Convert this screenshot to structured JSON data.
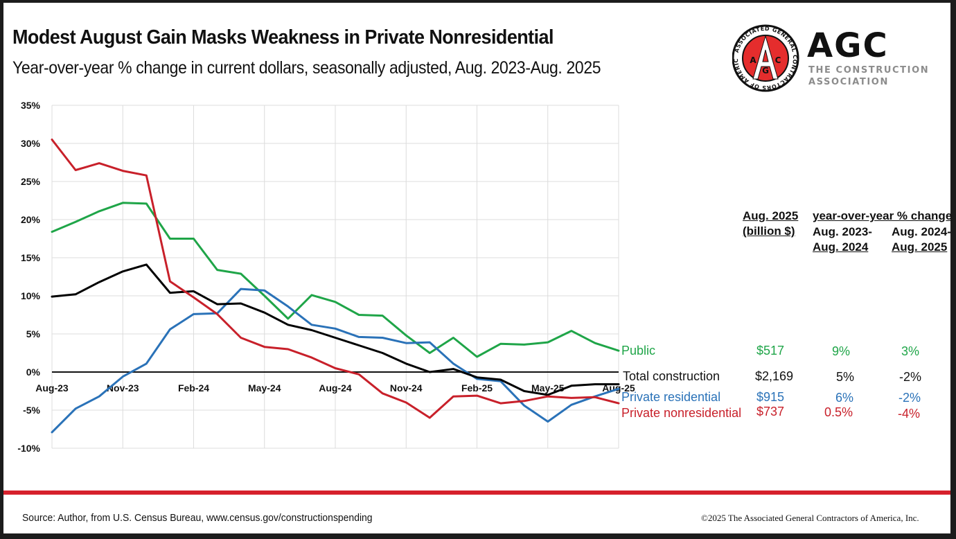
{
  "header": {
    "title": "Modest August Gain Masks Weakness in Private Nonresidential",
    "subtitle": "Year-over-year % change in current dollars, seasonally adjusted, Aug. 2023-Aug. 2025"
  },
  "logo": {
    "seal_ring_text": "ASSOCIATED GENERAL CONTRACTORS OF AMERICA",
    "seal_letters": [
      "A",
      "G",
      "C"
    ],
    "wordmark": "AGC",
    "tagline_line1": "THE CONSTRUCTION",
    "tagline_line2": "ASSOCIATION",
    "brand_red": "#e52d2d"
  },
  "chart_data": {
    "type": "line",
    "title": "Modest August Gain Masks Weakness in Private Nonresidential",
    "subtitle": "Year-over-year % change in current dollars, seasonally adjusted, Aug. 2023-Aug. 2025",
    "xlabel": "",
    "ylabel": "",
    "ylim": [
      -10,
      35
    ],
    "yticks": [
      35,
      30,
      25,
      20,
      15,
      10,
      5,
      0,
      -5,
      -10
    ],
    "ytick_labels": [
      "35%",
      "30%",
      "25%",
      "20%",
      "15%",
      "10%",
      "5%",
      "0%",
      "-5%",
      "-10%"
    ],
    "x": [
      "Aug-23",
      "Sep-23",
      "Oct-23",
      "Nov-23",
      "Dec-23",
      "Jan-24",
      "Feb-24",
      "Mar-24",
      "Apr-24",
      "May-24",
      "Jun-24",
      "Jul-24",
      "Aug-24",
      "Sep-24",
      "Oct-24",
      "Nov-24",
      "Dec-24",
      "Jan-25",
      "Feb-25",
      "Mar-25",
      "Apr-25",
      "May-25",
      "Jun-25",
      "Jul-25",
      "Aug-25"
    ],
    "xtick_labels": [
      "Aug-23",
      "Nov-23",
      "Feb-24",
      "May-24",
      "Aug-24",
      "Nov-24",
      "Feb-25",
      "May-25",
      "Aug-25"
    ],
    "grid": true,
    "legend": "right (inline labels at line ends)",
    "series": [
      {
        "name": "Public",
        "color": "#1fa548",
        "values": [
          18.4,
          19.7,
          21.1,
          22.2,
          22.1,
          17.5,
          17.5,
          13.4,
          12.9,
          10.0,
          7.0,
          10.1,
          9.2,
          7.5,
          7.4,
          4.8,
          2.5,
          4.5,
          2.0,
          3.7,
          3.6,
          3.9,
          5.4,
          3.8,
          2.8
        ]
      },
      {
        "name": "Total construction",
        "color": "#000000",
        "values": [
          9.9,
          10.2,
          11.8,
          13.2,
          14.1,
          10.4,
          10.6,
          8.9,
          9.0,
          7.8,
          6.2,
          5.5,
          4.5,
          3.5,
          2.5,
          1.1,
          0.0,
          0.4,
          -0.7,
          -1.0,
          -2.5,
          -3.0,
          -1.8,
          -1.6,
          -1.6
        ]
      },
      {
        "name": "Private residential",
        "color": "#2a72b8",
        "values": [
          -7.9,
          -4.8,
          -3.2,
          -0.6,
          1.1,
          5.6,
          7.6,
          7.7,
          10.9,
          10.7,
          8.6,
          6.2,
          5.7,
          4.6,
          4.5,
          3.8,
          3.9,
          1.1,
          -0.9,
          -1.2,
          -4.4,
          -6.5,
          -4.3,
          -3.2,
          -2.2
        ]
      },
      {
        "name": "Private nonresidential",
        "color": "#c8202a",
        "values": [
          30.5,
          26.5,
          27.4,
          26.4,
          25.8,
          11.9,
          9.8,
          7.6,
          4.5,
          3.3,
          3.0,
          1.9,
          0.5,
          -0.3,
          -2.8,
          -4.0,
          -6.0,
          -3.2,
          -3.1,
          -4.1,
          -3.8,
          -3.2,
          -3.4,
          -3.3,
          -4.1
        ]
      }
    ]
  },
  "table": {
    "col1_header_line1": "Aug. 2025",
    "col1_header_line2": "(billion $)",
    "yoy_header": "year-over-year % change",
    "col2_header_line1": "Aug. 2023-",
    "col2_header_line2": "Aug. 2024",
    "col3_header_line1": "Aug. 2024-",
    "col3_header_line2": "Aug. 2025",
    "rows": [
      {
        "label": "Public",
        "value": "$517",
        "yoy_2024": "9%",
        "yoy_2025": "3%",
        "color": "#1fa548"
      },
      {
        "label": "Total construction",
        "value": "$2,169",
        "yoy_2024": "5%",
        "yoy_2025": "-2%",
        "color": "#111111"
      },
      {
        "label": "Private residential",
        "value": "$915",
        "yoy_2024": "6%",
        "yoy_2025": "-2%",
        "color": "#2a72b8"
      },
      {
        "label": "Private nonresidential",
        "value": "$737",
        "yoy_2024": "0.5%",
        "yoy_2025": "-4%",
        "color": "#c8202a"
      }
    ]
  },
  "footer": {
    "source": "Source: Author, from U.S. Census Bureau, www.census.gov/constructionspending",
    "copyright": "©2025 The Associated General Contractors of America, Inc."
  }
}
